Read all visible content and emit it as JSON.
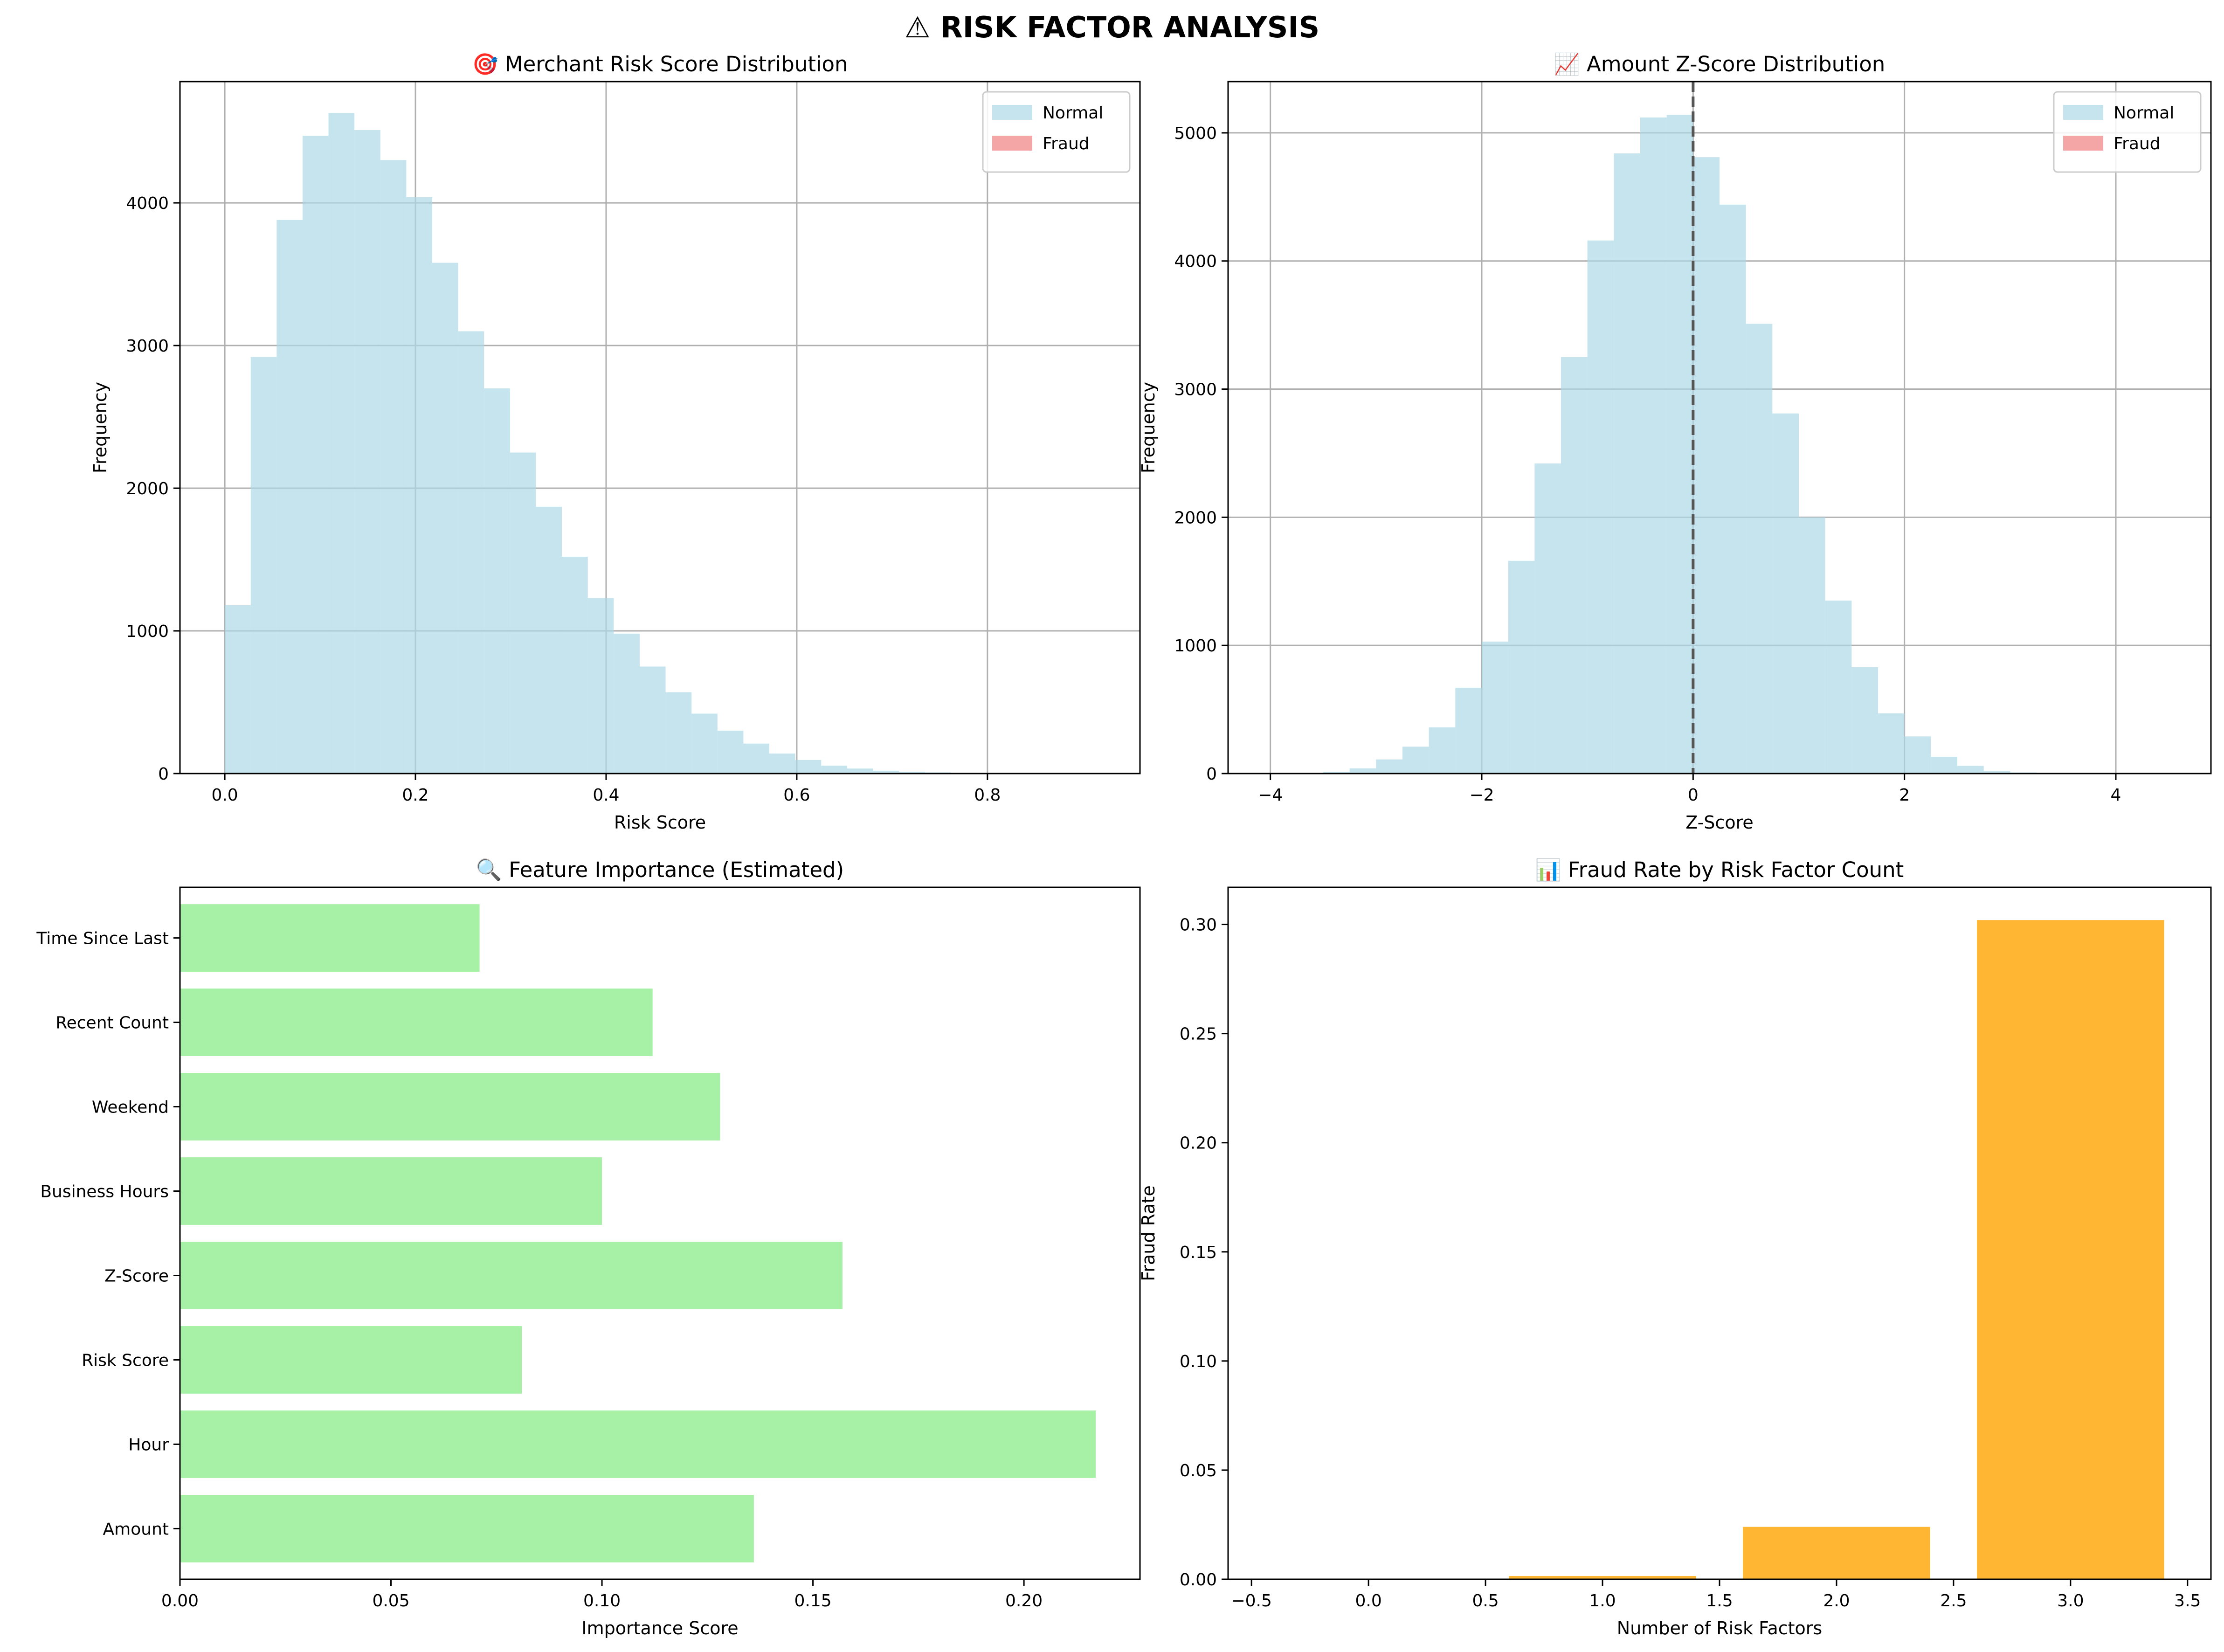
{
  "figure": {
    "suptitle": "⚠ RISK FACTOR ANALYSIS"
  },
  "colors": {
    "normal": "#add8e6",
    "fraud": "#f08080",
    "importance": "#90ee90",
    "fraud_rate": "#ffa500",
    "grid": "#b0b0b0",
    "zero_line": "#555555"
  },
  "chart_data": [
    {
      "id": "merchant-risk",
      "type": "histogram",
      "title": "🎯 Merchant Risk Score Distribution",
      "xlabel": "Risk Score",
      "ylabel": "Frequency",
      "xlim": [
        -0.047,
        0.96
      ],
      "ylim": [
        0,
        4850
      ],
      "xticks": [
        0.0,
        0.2,
        0.4,
        0.6,
        0.8
      ],
      "xtick_labels": [
        "0.0",
        "0.2",
        "0.4",
        "0.6",
        "0.8"
      ],
      "yticks": [
        0,
        1000,
        2000,
        3000,
        4000
      ],
      "grid": true,
      "legend": {
        "position": "top-right",
        "entries": [
          "Normal",
          "Fraud"
        ]
      },
      "bins": {
        "start": 0.0,
        "width": 0.0272
      },
      "series": [
        {
          "name": "Normal",
          "color_key": "normal",
          "values": [
            1180,
            2920,
            3880,
            4470,
            4630,
            4510,
            4300,
            4040,
            3580,
            3100,
            2700,
            2250,
            1870,
            1520,
            1230,
            980,
            750,
            570,
            420,
            300,
            210,
            140,
            95,
            55,
            35,
            20,
            12,
            8,
            5,
            3,
            2,
            1,
            1,
            0
          ]
        },
        {
          "name": "Fraud",
          "color_key": "fraud",
          "values": []
        }
      ]
    },
    {
      "id": "amount-zscore",
      "type": "histogram",
      "title": "📈 Amount Z-Score Distribution",
      "xlabel": "Z-Score",
      "ylabel": "Frequency",
      "xlim": [
        -4.4,
        4.9
      ],
      "ylim": [
        0,
        5400
      ],
      "xticks": [
        -4,
        -2,
        0,
        2,
        4
      ],
      "xtick_labels": [
        "−4",
        "−2",
        "0",
        "2",
        "4"
      ],
      "yticks": [
        0,
        1000,
        2000,
        3000,
        4000,
        5000
      ],
      "grid": true,
      "vline_x": 0,
      "legend": {
        "position": "top-right",
        "entries": [
          "Normal",
          "Fraud"
        ]
      },
      "bins": {
        "start": -4.0,
        "width": 0.25
      },
      "series": [
        {
          "name": "Normal",
          "color_key": "normal",
          "values": [
            3,
            5,
            12,
            40,
            110,
            210,
            360,
            670,
            1030,
            1660,
            2420,
            3250,
            4160,
            4840,
            5120,
            5140,
            4810,
            4440,
            3510,
            2810,
            2000,
            1350,
            830,
            470,
            290,
            130,
            60,
            20,
            8,
            4,
            2,
            1
          ]
        },
        {
          "name": "Fraud",
          "color_key": "fraud",
          "values": []
        }
      ]
    },
    {
      "id": "feature-importance",
      "type": "barh",
      "title": "🔍 Feature Importance (Estimated)",
      "xlabel": "Importance Score",
      "ylabel": "",
      "xlim": [
        0,
        0.2275
      ],
      "xticks": [
        0.0,
        0.05,
        0.1,
        0.15,
        0.2
      ],
      "xtick_labels": [
        "0.00",
        "0.05",
        "0.10",
        "0.15",
        "0.20"
      ],
      "grid": false,
      "categories": [
        "Amount",
        "Hour",
        "Risk Score",
        "Z-Score",
        "Business Hours",
        "Weekend",
        "Recent Count",
        "Time Since Last"
      ],
      "values": [
        0.136,
        0.217,
        0.081,
        0.157,
        0.1,
        0.128,
        0.112,
        0.071
      ]
    },
    {
      "id": "fraud-rate",
      "type": "bar",
      "title": "📊 Fraud Rate by Risk Factor Count",
      "xlabel": "Number of Risk Factors",
      "ylabel": "Fraud Rate",
      "xlim": [
        -0.6,
        3.6
      ],
      "ylim": [
        0,
        0.317
      ],
      "xticks": [
        -0.5,
        0.0,
        0.5,
        1.0,
        1.5,
        2.0,
        2.5,
        3.0,
        3.5
      ],
      "xtick_labels": [
        "−0.5",
        "0.0",
        "0.5",
        "1.0",
        "1.5",
        "2.0",
        "2.5",
        "3.0",
        "3.5"
      ],
      "yticks": [
        0.0,
        0.05,
        0.1,
        0.15,
        0.2,
        0.25,
        0.3
      ],
      "ytick_labels": [
        "0.00",
        "0.05",
        "0.10",
        "0.15",
        "0.20",
        "0.25",
        "0.30"
      ],
      "grid": false,
      "categories": [
        0,
        1,
        2,
        3
      ],
      "values": [
        0.0,
        0.0015,
        0.024,
        0.302
      ]
    }
  ]
}
